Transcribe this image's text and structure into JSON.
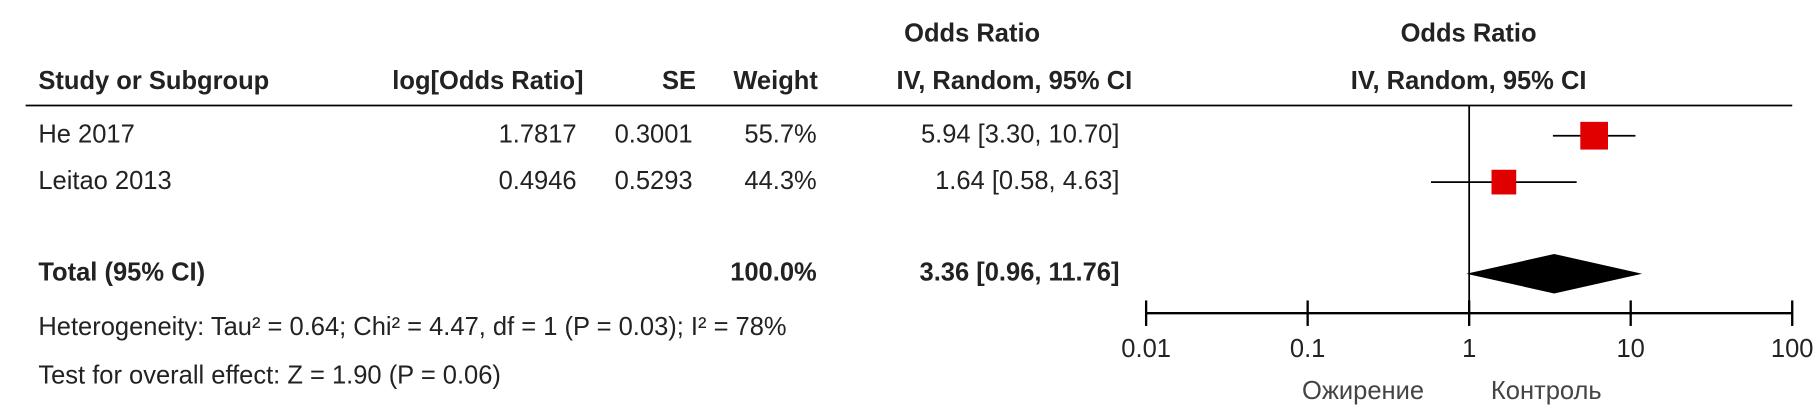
{
  "chart_data": {
    "type": "forest",
    "column_headers": {
      "study": "Study or Subgroup",
      "log_or": "log[Odds Ratio]",
      "se": "SE",
      "weight": "Weight",
      "ci_title": "Odds Ratio",
      "ci_subtitle": "IV, Random, 95% CI"
    },
    "plot_title": "Odds Ratio",
    "plot_subtitle": "IV, Random, 95% CI",
    "studies": [
      {
        "name": "He 2017",
        "log_or": 1.7817,
        "se": 0.3001,
        "weight": {
          "value": 55.7,
          "label": "55.7%"
        },
        "or": 5.94,
        "ci_low": 3.3,
        "ci_high": 10.7,
        "ci_label": "5.94 [3.30, 10.70]"
      },
      {
        "name": "Leitao 2013",
        "log_or": 0.4946,
        "se": 0.5293,
        "weight": {
          "value": 44.3,
          "label": "44.3%"
        },
        "or": 1.64,
        "ci_low": 0.58,
        "ci_high": 4.63,
        "ci_label": "1.64 [0.58, 4.63]"
      }
    ],
    "total": {
      "name": "Total (95% CI)",
      "weight": {
        "value": 100.0,
        "label": "100.0%"
      },
      "or": 3.36,
      "ci_low": 0.96,
      "ci_high": 11.76,
      "ci_label": "3.36 [0.96, 11.76]"
    },
    "heterogeneity": "Heterogeneity: Tau² = 0.64; Chi² = 4.47, df = 1 (P = 0.03); I² = 78%",
    "overall_effect": "Test for overall effect: Z = 1.90 (P = 0.06)",
    "xlim": [
      0.01,
      100
    ],
    "xticks": [
      0.01,
      0.1,
      1,
      10,
      100
    ],
    "x_log": true,
    "favours_left": "Ожирение",
    "favours_right": "Контроль",
    "marker_color": "#e00000",
    "diamond_color": "#000000"
  }
}
